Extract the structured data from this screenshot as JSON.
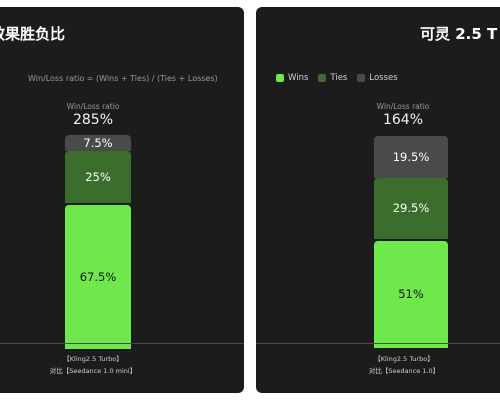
{
  "colors": {
    "wins": "#6ee84a",
    "ties": "#3b6d2c",
    "losses": "#4a4a4a"
  },
  "left_panel": {
    "title": "效果胜负比",
    "formula": "Win/Loss ratio = (Wins + Ties) / (Ties + Losses)",
    "ratio_label": "Win/Loss ratio",
    "ratio_value": "285%",
    "caption_line1": "【Kling2.5 Turbo】",
    "caption_line2": "对比【Seedance 1.0 mini】"
  },
  "right_panel": {
    "title": "可灵 2.5 T",
    "legend": {
      "wins": "Wins",
      "ties": "Ties",
      "losses": "Losses"
    },
    "ratio_label": "Win/Loss ratio",
    "ratio_value": "164%",
    "caption_line1": "【Kling2.5 Turbo】",
    "caption_line2": "对比【Seedance 1.0】"
  },
  "chart_data": [
    {
      "type": "bar",
      "stacked": true,
      "series": [
        {
          "name": "Wins",
          "values": [
            67.5
          ],
          "labels": [
            "67.5%"
          ]
        },
        {
          "name": "Ties",
          "values": [
            25
          ],
          "labels": [
            "25%"
          ]
        },
        {
          "name": "Losses",
          "values": [
            7.5
          ],
          "labels": [
            "7.5%"
          ]
        }
      ],
      "title": "效果胜负比"
    },
    {
      "type": "bar",
      "stacked": true,
      "series": [
        {
          "name": "Wins",
          "values": [
            51
          ],
          "labels": [
            "51%"
          ]
        },
        {
          "name": "Ties",
          "values": [
            29.5
          ],
          "labels": [
            "29.5%"
          ]
        },
        {
          "name": "Losses",
          "values": [
            19.5
          ],
          "labels": [
            "19.5%"
          ]
        }
      ],
      "title": "可灵 2.5 T"
    }
  ]
}
